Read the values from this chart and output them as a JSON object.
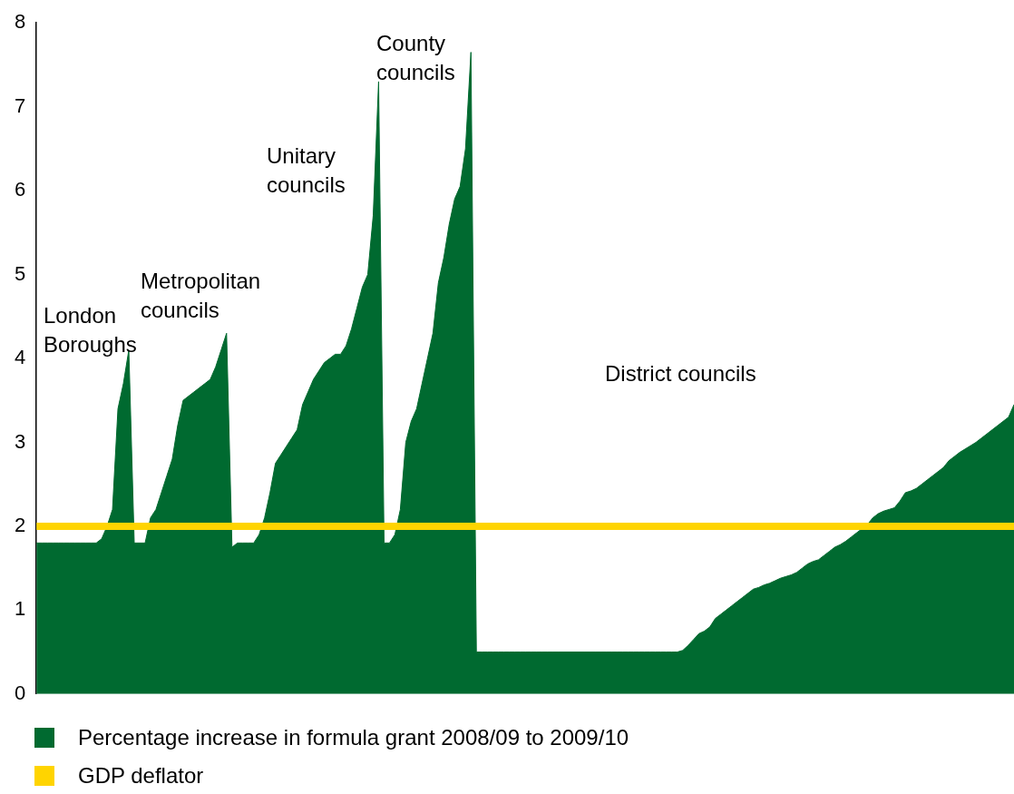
{
  "chart_data": {
    "type": "area",
    "categories": [
      null,
      null,
      null,
      null,
      null,
      null,
      null,
      null,
      null,
      null,
      null,
      null,
      null,
      null,
      null,
      null,
      null,
      null,
      null,
      null,
      null,
      null,
      null,
      null,
      null,
      null,
      null,
      null,
      null,
      null,
      null,
      null,
      null,
      null,
      null,
      null,
      null,
      null,
      null,
      null,
      null,
      null,
      null,
      null,
      null,
      null,
      null,
      null,
      null,
      null,
      null,
      null,
      null,
      null,
      null,
      null,
      null,
      null,
      null,
      null,
      null,
      null,
      null,
      null,
      null,
      null,
      null,
      null,
      null,
      null,
      null,
      null,
      null,
      null,
      null,
      null,
      null,
      null,
      null,
      null,
      null,
      null,
      null,
      null,
      null,
      null,
      null,
      null,
      null,
      null,
      null,
      null,
      null,
      null,
      null,
      null,
      null,
      null,
      null,
      null,
      null,
      null,
      null,
      null,
      null,
      null,
      null,
      null,
      null,
      null,
      null,
      null,
      null,
      null,
      null,
      null,
      null,
      null,
      null,
      null,
      null,
      null,
      null,
      null,
      null,
      null,
      null,
      null,
      null,
      null,
      null,
      null,
      null,
      null,
      null,
      null,
      null,
      null,
      null,
      null,
      null,
      null,
      null,
      null,
      null,
      null,
      null,
      null,
      null,
      null,
      null,
      null,
      null,
      null,
      null,
      null,
      null,
      null,
      null,
      null,
      null,
      null,
      null,
      null,
      null,
      null,
      null,
      null,
      null,
      null,
      null,
      null,
      null,
      null,
      null,
      null,
      null,
      null,
      null,
      null,
      null
    ],
    "series": [
      {
        "name": "Percentage increase in formula grant 2008/09 to 2009/10",
        "color": "#006a30",
        "values": [
          1.8,
          1.8,
          1.8,
          1.8,
          1.8,
          1.8,
          1.8,
          1.8,
          1.8,
          1.8,
          1.8,
          1.8,
          1.85,
          2.0,
          2.2,
          3.4,
          3.7,
          4.1,
          1.8,
          1.8,
          1.8,
          2.1,
          2.2,
          2.4,
          2.6,
          2.8,
          3.2,
          3.5,
          3.55,
          3.6,
          3.65,
          3.7,
          3.75,
          3.9,
          4.1,
          4.3,
          1.75,
          1.8,
          1.8,
          1.8,
          1.8,
          1.9,
          2.1,
          2.4,
          2.75,
          2.85,
          2.95,
          3.05,
          3.15,
          3.45,
          3.6,
          3.75,
          3.85,
          3.95,
          4.0,
          4.05,
          4.05,
          4.15,
          4.35,
          4.6,
          4.85,
          5.0,
          5.7,
          7.3,
          1.8,
          1.8,
          1.9,
          2.2,
          3.0,
          3.25,
          3.4,
          3.7,
          4.0,
          4.3,
          4.9,
          5.2,
          5.6,
          5.9,
          6.05,
          6.5,
          7.65,
          0.5,
          0.5,
          0.5,
          0.5,
          0.5,
          0.5,
          0.5,
          0.5,
          0.5,
          0.5,
          0.5,
          0.5,
          0.5,
          0.5,
          0.5,
          0.5,
          0.5,
          0.5,
          0.5,
          0.5,
          0.5,
          0.5,
          0.5,
          0.5,
          0.5,
          0.5,
          0.5,
          0.5,
          0.5,
          0.5,
          0.5,
          0.5,
          0.5,
          0.5,
          0.5,
          0.5,
          0.5,
          0.5,
          0.52,
          0.58,
          0.65,
          0.72,
          0.75,
          0.8,
          0.9,
          0.95,
          1.0,
          1.05,
          1.1,
          1.15,
          1.2,
          1.25,
          1.27,
          1.3,
          1.32,
          1.35,
          1.38,
          1.4,
          1.42,
          1.45,
          1.5,
          1.55,
          1.58,
          1.6,
          1.65,
          1.7,
          1.75,
          1.78,
          1.82,
          1.87,
          1.92,
          1.97,
          2.02,
          2.1,
          2.15,
          2.18,
          2.2,
          2.22,
          2.3,
          2.4,
          2.42,
          2.45,
          2.5,
          2.55,
          2.6,
          2.65,
          2.7,
          2.78,
          2.83,
          2.88,
          2.92,
          2.96,
          3.0,
          3.05,
          3.1,
          3.15,
          3.2,
          3.25,
          3.3,
          3.45
        ]
      },
      {
        "name": "GDP deflator",
        "type": "line",
        "color": "#ffd400",
        "values": [
          2,
          2,
          2,
          2,
          2,
          2,
          2,
          2,
          2,
          2,
          2,
          2,
          2,
          2,
          2,
          2,
          2,
          2,
          2,
          2,
          2,
          2,
          2,
          2,
          2,
          2,
          2,
          2,
          2,
          2,
          2,
          2,
          2,
          2,
          2,
          2,
          2,
          2,
          2,
          2,
          2,
          2,
          2,
          2,
          2,
          2,
          2,
          2,
          2,
          2,
          2,
          2,
          2,
          2,
          2,
          2,
          2,
          2,
          2,
          2,
          2,
          2,
          2,
          2,
          2,
          2,
          2,
          2,
          2,
          2,
          2,
          2,
          2,
          2,
          2,
          2,
          2,
          2,
          2,
          2,
          2,
          2,
          2,
          2,
          2,
          2,
          2,
          2,
          2,
          2,
          2,
          2,
          2,
          2,
          2,
          2,
          2,
          2,
          2,
          2,
          2,
          2,
          2,
          2,
          2,
          2,
          2,
          2,
          2,
          2,
          2,
          2,
          2,
          2,
          2,
          2,
          2,
          2,
          2,
          2,
          2,
          2,
          2,
          2,
          2,
          2,
          2,
          2,
          2,
          2,
          2,
          2,
          2,
          2,
          2,
          2,
          2,
          2,
          2,
          2,
          2,
          2,
          2,
          2,
          2,
          2,
          2,
          2,
          2,
          2,
          2,
          2,
          2,
          2,
          2,
          2,
          2,
          2,
          2,
          2,
          2,
          2,
          2,
          2,
          2,
          2,
          2,
          2,
          2,
          2,
          2,
          2,
          2,
          2,
          2,
          2,
          2,
          2,
          2,
          2,
          2
        ]
      }
    ],
    "ylim": [
      0,
      8
    ],
    "yticks": [
      0,
      1,
      2,
      3,
      4,
      5,
      6,
      7,
      8
    ],
    "grid": false,
    "legend": "bottom left",
    "marker": "none",
    "annotations": [
      "London Boroughs",
      "Metropolitan councils",
      "Unitary councils",
      "County councils",
      "District councils"
    ]
  }
}
